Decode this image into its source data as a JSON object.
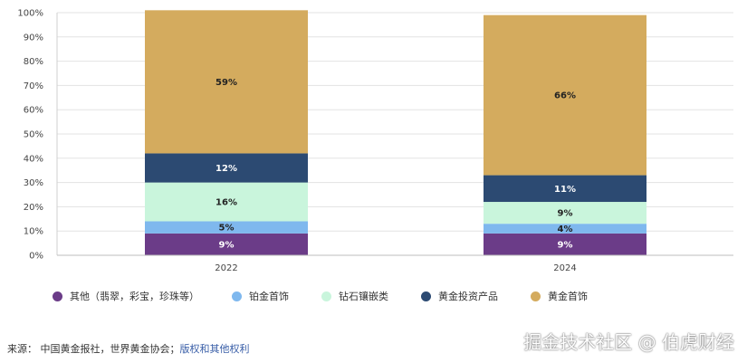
{
  "chart_data": {
    "type": "bar",
    "stacked": true,
    "categories": [
      "2022",
      "2024"
    ],
    "series": [
      {
        "name": "其他（翡翠，彩宝，珍珠等）",
        "color": "#6b3c88",
        "values": [
          9,
          9
        ],
        "labels": [
          "9%",
          "9%"
        ]
      },
      {
        "name": "铂金首饰",
        "color": "#7fb8ee",
        "values": [
          5,
          4
        ],
        "labels": [
          "5%",
          "4%"
        ]
      },
      {
        "name": "钻石镶嵌类",
        "color": "#c9f5dc",
        "values": [
          16,
          9
        ],
        "labels": [
          "16%",
          "9%"
        ]
      },
      {
        "name": "黄金投资产品",
        "color": "#2c4a72",
        "values": [
          12,
          11
        ],
        "labels": [
          "12%",
          "11%"
        ]
      },
      {
        "name": "黄金首饰",
        "color": "#d4ab5e",
        "values": [
          59,
          66
        ],
        "labels": [
          "59%",
          "66%"
        ]
      }
    ],
    "yticks": [
      "0%",
      "10%",
      "20%",
      "30%",
      "40%",
      "50%",
      "60%",
      "70%",
      "80%",
      "90%",
      "100%"
    ],
    "ylim": [
      0,
      100
    ],
    "grid": true,
    "legend": "bottom",
    "title": "",
    "xlabel": "",
    "ylabel": ""
  },
  "legend_items": [
    "其他（翡翠，彩宝，珍珠等）",
    "铂金首饰",
    "钻石镶嵌类",
    "黄金投资产品",
    "黄金首饰"
  ],
  "source": {
    "prefix": "来源：",
    "text": "中国黄金报社，世界黄金协会；",
    "link": "版权和其他权利"
  },
  "watermark": "掘金技术社区 @ 伯虎财经"
}
